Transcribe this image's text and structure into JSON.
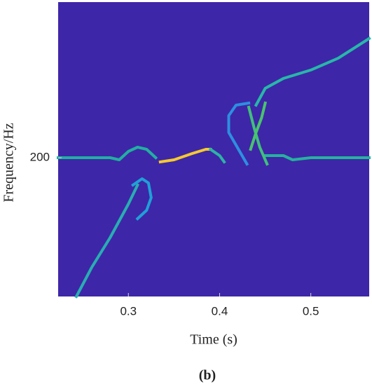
{
  "chart_data": {
    "type": "line",
    "xlabel": "Time (s)",
    "ylabel": "Frequency/Hz",
    "caption": "(b)",
    "background": "#3e26a8",
    "xlim": [
      0.223,
      0.564
    ],
    "ylim": [
      134,
      274
    ],
    "xticks": [
      0.3,
      0.4,
      0.5
    ],
    "yticks": [
      200
    ],
    "series": [
      {
        "color": "#21b0a0",
        "x": [
          0.223,
          0.28,
          0.29,
          0.3,
          0.31,
          0.32,
          0.33
        ],
        "values": [
          200,
          200,
          199,
          203,
          205,
          204,
          200
        ]
      },
      {
        "color": "#f5c92e",
        "x": [
          0.335,
          0.35,
          0.37,
          0.385,
          0.39
        ],
        "values": [
          198,
          199,
          202,
          204,
          204
        ]
      },
      {
        "color": "#2bb5a3",
        "x": [
          0.39,
          0.4,
          0.405
        ],
        "values": [
          204,
          201,
          198
        ]
      },
      {
        "color": "#26b29d",
        "x": [
          0.45,
          0.47,
          0.48,
          0.5,
          0.564
        ],
        "values": [
          201,
          201,
          199,
          200,
          200
        ]
      },
      {
        "color": "#27b8a8",
        "x": [
          0.44,
          0.45,
          0.47,
          0.5,
          0.53,
          0.564
        ],
        "values": [
          225,
          233,
          237.7,
          241.7,
          247.3,
          256.7
        ]
      },
      {
        "color": "#28aeb2",
        "x": [
          0.243,
          0.26,
          0.28,
          0.3,
          0.31
        ],
        "values": [
          134,
          148,
          162,
          178,
          187
        ]
      },
      {
        "color": "#1fa0d8",
        "x": [
          0.305,
          0.315,
          0.322,
          0.325,
          0.32,
          0.31
        ],
        "values": [
          187,
          190,
          188,
          181,
          175,
          171
        ]
      },
      {
        "color": "#2c8fe0",
        "x": [
          0.432,
          0.418,
          0.41,
          0.41,
          0.418,
          0.43
        ],
        "values": [
          226,
          225,
          220,
          212,
          206,
          197
        ]
      },
      {
        "color": "#3fc07c",
        "x": [
          0.432,
          0.438,
          0.444,
          0.452
        ],
        "values": [
          224,
          214,
          205,
          197
        ]
      },
      {
        "color": "#48c46e",
        "x": [
          0.434,
          0.44,
          0.446,
          0.45
        ],
        "values": [
          204,
          212,
          219,
          226
        ]
      }
    ]
  }
}
